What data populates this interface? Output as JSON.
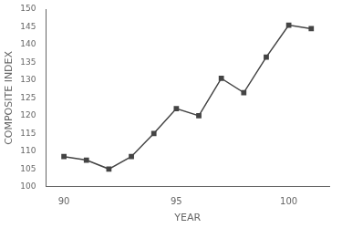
{
  "chart_data": {
    "type": "line",
    "x": [
      90,
      91,
      92,
      93,
      94,
      95,
      96,
      97,
      98,
      99,
      100,
      101
    ],
    "values": [
      108.5,
      107.5,
      105.0,
      108.5,
      115.0,
      122.0,
      120.0,
      130.5,
      126.5,
      136.5,
      145.5,
      144.5
    ],
    "xlim": [
      89.2,
      101.8
    ],
    "ylim": [
      100,
      150
    ],
    "xticks": [
      90,
      95,
      100
    ],
    "yticks": [
      100,
      105,
      110,
      115,
      120,
      125,
      130,
      135,
      140,
      145,
      150
    ],
    "xlabel": "YEAR",
    "ylabel": "COMPOSITE INDEX",
    "color": "#444444",
    "marker": "square",
    "grid": false
  }
}
